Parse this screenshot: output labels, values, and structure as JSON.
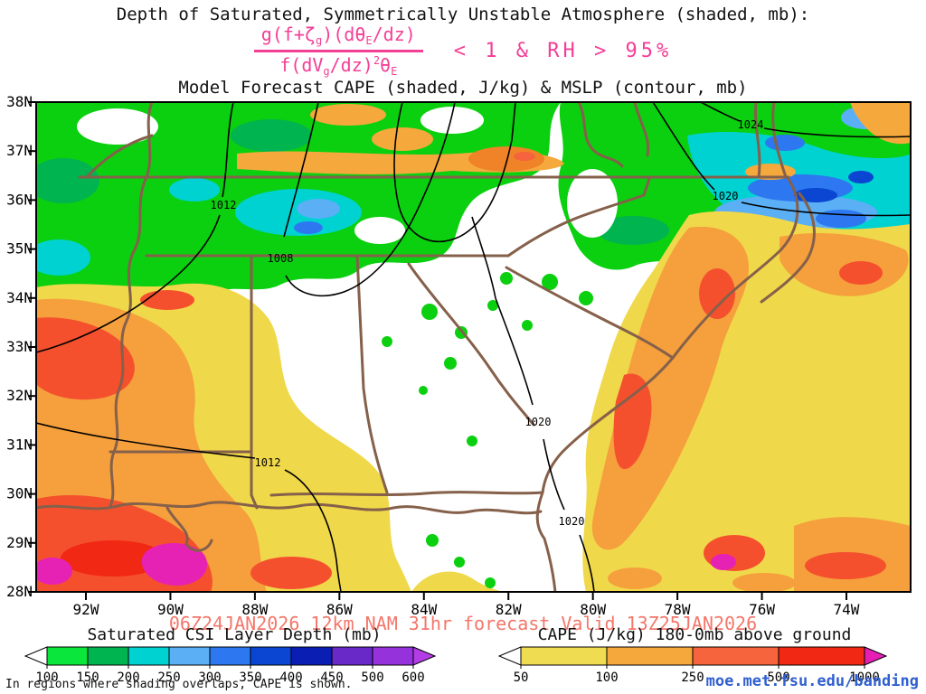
{
  "colors": {
    "formula_pink": "#f43f96",
    "validity_red": "#f4766a",
    "url_blue": "#2f5fd0",
    "state_border_brown": "#85604a",
    "contour_black": "#000000"
  },
  "header": {
    "title1": "Depth of Saturated, Symmetrically Unstable Atmosphere (shaded, mb):",
    "formula": {
      "num_parts": [
        "g(f+ζ",
        "g",
        ")(dθ",
        "E",
        "/dz)"
      ],
      "den_parts": [
        "f(dV",
        "g",
        "/dz)",
        "2",
        "θ",
        "E"
      ],
      "condition": "< 1 & RH > 95%"
    },
    "title2": "Model Forecast CAPE (shaded, J/kg) & MSLP (contour, mb)"
  },
  "map": {
    "lat_labels": [
      "38N",
      "37N",
      "36N",
      "35N",
      "34N",
      "33N",
      "32N",
      "31N",
      "30N",
      "29N",
      "28N"
    ],
    "lon_labels": [
      "92W",
      "90W",
      "88W",
      "86W",
      "84W",
      "82W",
      "80W",
      "78W",
      "76W",
      "74W"
    ],
    "contour_labels": [
      "1012",
      "1008",
      "1012",
      "1020",
      "1020",
      "1024",
      "1020"
    ]
  },
  "legends": {
    "csi": {
      "title": "Saturated CSI Layer Depth (mb)",
      "ticks": [
        "100",
        "150",
        "200",
        "250",
        "300",
        "350",
        "400",
        "450",
        "500",
        "600"
      ],
      "colors": [
        "#ffffff",
        "#0ae63c",
        "#00b450",
        "#00d2d2",
        "#5aaff5",
        "#2d78f0",
        "#0a46d2",
        "#0a1eb4",
        "#6928c8",
        "#9632dc",
        "#b43ce6"
      ]
    },
    "cape": {
      "title": "CAPE (J/kg) 180-0mb above ground",
      "ticks": [
        "50",
        "100",
        "250",
        "500",
        "1000"
      ],
      "colors": [
        "#ffffff",
        "#f0dc50",
        "#f5a83c",
        "#f5643c",
        "#f02814",
        "#e61eb4"
      ]
    }
  },
  "footer": {
    "validity": "06Z24JAN2026 12km NAM 31hr forecast Valid 13Z25JAN2026",
    "note": "In regions where shading overlaps, CAPE is shown.",
    "url": "moe.met.fsu.edu/banding"
  },
  "chart_data": {
    "type": "heatmap",
    "title": "Depth of Saturated, Symmetrically Unstable Atmosphere (shaded, mb)",
    "subtitle": "Model Forecast CAPE (shaded, J/kg) & MSLP (contour, mb)",
    "criterion": "g(f+ζ_g)(dθ_E/dz) / f(dV_g/dz)²θ_E < 1 & RH > 95%",
    "x_tick_labels": [
      "92W",
      "90W",
      "88W",
      "86W",
      "84W",
      "82W",
      "80W",
      "78W",
      "76W",
      "74W"
    ],
    "y_tick_labels": [
      "38N",
      "37N",
      "36N",
      "35N",
      "34N",
      "33N",
      "32N",
      "31N",
      "30N",
      "29N",
      "28N"
    ],
    "region": {
      "lat_range": [
        "28N",
        "38N"
      ],
      "lon_range": [
        "92W",
        "74W"
      ]
    },
    "fields": [
      {
        "name": "Saturated CSI Layer Depth",
        "units": "mb",
        "render": "shaded",
        "levels": [
          100,
          150,
          200,
          250,
          300,
          350,
          400,
          450,
          500,
          600
        ],
        "palette": [
          "#ffffff",
          "#0ae63c",
          "#00b450",
          "#00d2d2",
          "#5aaff5",
          "#2d78f0",
          "#0a46d2",
          "#0a1eb4",
          "#6928c8",
          "#9632dc",
          "#b43ce6"
        ],
        "where": "northern third of domain (roughly 35N-38N), green/cyan/blue patches"
      },
      {
        "name": "CAPE 180-0mb above ground",
        "units": "J/kg",
        "render": "shaded",
        "levels": [
          50,
          100,
          250,
          500,
          1000
        ],
        "palette": [
          "#ffffff",
          "#f0dc50",
          "#f5a83c",
          "#f5643c",
          "#f02814",
          "#e61eb4"
        ],
        "where": "southwest quadrant and Atlantic coastal band, yellow/orange/red with magenta maxima over 1000 J/kg"
      },
      {
        "name": "MSLP",
        "units": "mb",
        "render": "contour",
        "visible_contour_labels": [
          1012,
          1008,
          1012,
          1020,
          1020,
          1024,
          1020
        ]
      }
    ],
    "model_run": "06Z24JAN2026",
    "model": "12km NAM",
    "forecast_hour": 31,
    "valid": "13Z25JAN2026"
  }
}
